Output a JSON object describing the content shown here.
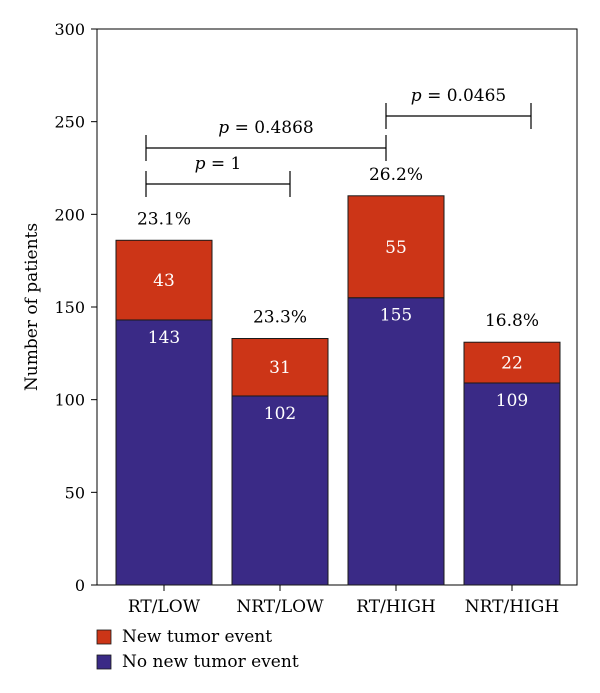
{
  "chart_data": {
    "type": "bar",
    "stacked": true,
    "categories": [
      "RT/LOW",
      "NRT/LOW",
      "RT/HIGH",
      "NRT/HIGH"
    ],
    "series": [
      {
        "name": "No new tumor event",
        "values": [
          143,
          102,
          155,
          109
        ],
        "color": "#3a2a86"
      },
      {
        "name": "New tumor event",
        "values": [
          43,
          31,
          55,
          22
        ],
        "color": "#cc3517"
      }
    ],
    "percent_labels": [
      "23.1%",
      "23.3%",
      "26.2%",
      "16.8%"
    ],
    "ylabel": "Number of patients",
    "ylim": [
      0,
      300
    ],
    "yticks": [
      0,
      50,
      100,
      150,
      200,
      250,
      300
    ],
    "grid": false,
    "legend_position": "bottom-left",
    "comparisons": [
      {
        "from": 0,
        "to": 1,
        "p_symbol": "p",
        "p_text": " = 1"
      },
      {
        "from": 0,
        "to": 2,
        "p_symbol": "p",
        "p_text": " = 0.4868"
      },
      {
        "from": 2,
        "to": 3,
        "p_symbol": "p",
        "p_text": " = 0.0465"
      }
    ]
  }
}
